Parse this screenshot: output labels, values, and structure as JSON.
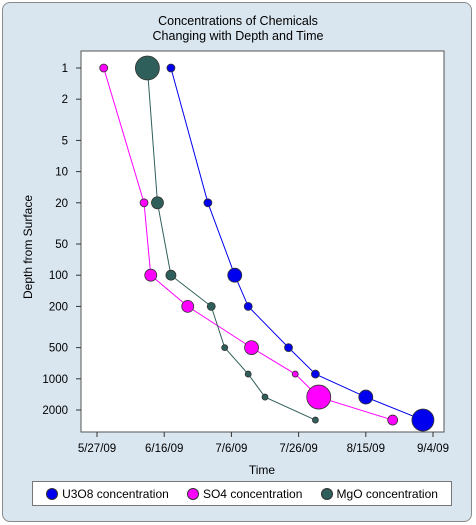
{
  "chart_data": {
    "type": "scatter",
    "title_lines": [
      "Concentrations of Chemicals",
      "Changing with Depth and Time"
    ],
    "xlabel": "Time",
    "ylabel": "Depth from Surface",
    "x_ticks": [
      "5/27/09",
      "6/16/09",
      "7/6/09",
      "7/26/09",
      "8/15/09",
      "9/4/09"
    ],
    "y_ticks": [
      "1",
      "2",
      "5",
      "10",
      "20",
      "50",
      "100",
      "200",
      "500",
      "1000",
      "2000"
    ],
    "y_scale": "log",
    "y_inverted": true,
    "series": [
      {
        "name": "U3O8 concentration",
        "color": "#0000ee",
        "points": [
          {
            "x": "2009-06-18",
            "y": 1,
            "size": 4
          },
          {
            "x": "2009-06-29",
            "y": 20,
            "size": 4
          },
          {
            "x": "2009-07-07",
            "y": 100,
            "size": 7
          },
          {
            "x": "2009-07-11",
            "y": 200,
            "size": 4
          },
          {
            "x": "2009-07-23",
            "y": 500,
            "size": 4
          },
          {
            "x": "2009-07-31",
            "y": 900,
            "size": 4
          },
          {
            "x": "2009-08-15",
            "y": 1500,
            "size": 7
          },
          {
            "x": "2009-09-01",
            "y": 2500,
            "size": 11
          }
        ]
      },
      {
        "name": "SO4 concentration",
        "color": "#ff00ff",
        "points": [
          {
            "x": "2009-05-29",
            "y": 1,
            "size": 4
          },
          {
            "x": "2009-06-10",
            "y": 20,
            "size": 4
          },
          {
            "x": "2009-06-12",
            "y": 100,
            "size": 6
          },
          {
            "x": "2009-06-23",
            "y": 200,
            "size": 6
          },
          {
            "x": "2009-07-12",
            "y": 500,
            "size": 7
          },
          {
            "x": "2009-07-25",
            "y": 900,
            "size": 3
          },
          {
            "x": "2009-08-01",
            "y": 1500,
            "size": 12
          },
          {
            "x": "2009-08-23",
            "y": 2500,
            "size": 5
          }
        ]
      },
      {
        "name": "MgO concentration",
        "color": "#2f5f5a",
        "points": [
          {
            "x": "2009-06-11",
            "y": 1,
            "size": 12
          },
          {
            "x": "2009-06-14",
            "y": 20,
            "size": 6
          },
          {
            "x": "2009-06-18",
            "y": 100,
            "size": 5
          },
          {
            "x": "2009-06-30",
            "y": 200,
            "size": 4
          },
          {
            "x": "2009-07-04",
            "y": 500,
            "size": 3
          },
          {
            "x": "2009-07-11",
            "y": 900,
            "size": 3
          },
          {
            "x": "2009-07-16",
            "y": 1500,
            "size": 3
          },
          {
            "x": "2009-07-31",
            "y": 2500,
            "size": 3
          }
        ]
      }
    ],
    "grid": false,
    "legend_position": "bottom"
  }
}
